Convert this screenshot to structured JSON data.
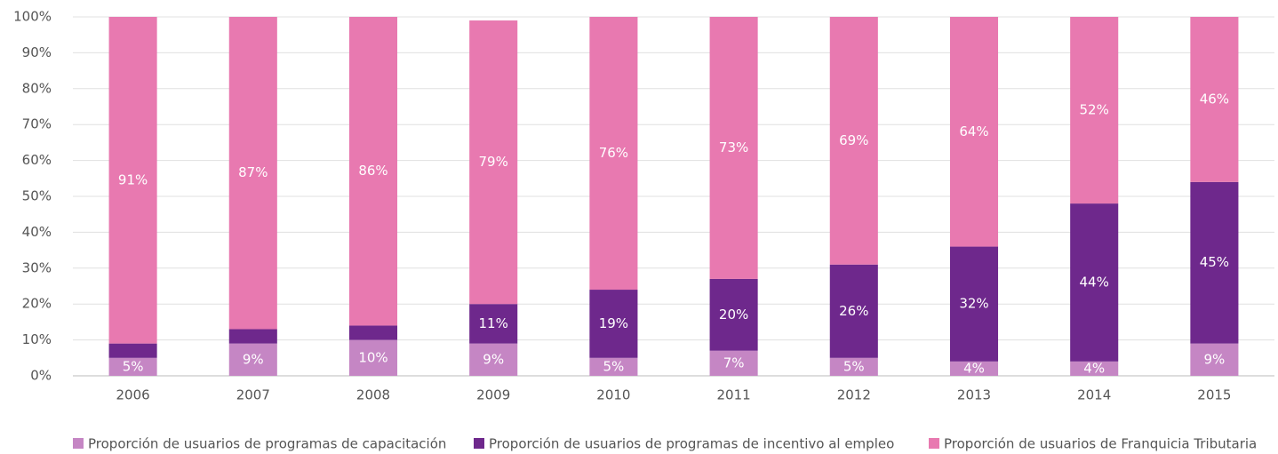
{
  "chart_data": {
    "type": "stacked_bar",
    "categories": [
      "2006",
      "2007",
      "2008",
      "2009",
      "2010",
      "2011",
      "2012",
      "2013",
      "2014",
      "2015"
    ],
    "series": [
      {
        "name": "Proporción de usuarios de programas de capacitación",
        "color": "#c586c4",
        "values": [
          5,
          9,
          10,
          9,
          5,
          7,
          5,
          4,
          4,
          9
        ],
        "value_labels": [
          "5%",
          "9%",
          "10%",
          "9%",
          "5%",
          "7%",
          "5%",
          "4%",
          "4%",
          "9%"
        ]
      },
      {
        "name": "Proporción de usuarios de programas de incentivo al empleo",
        "color": "#6e288c",
        "values": [
          4,
          4,
          4,
          11,
          19,
          20,
          26,
          32,
          44,
          45
        ],
        "value_labels": [
          null,
          null,
          null,
          "11%",
          "19%",
          "20%",
          "26%",
          "32%",
          "44%",
          "45%"
        ]
      },
      {
        "name": "Proporción de usuarios de Franquicia Tributaria",
        "color": "#e879b0",
        "values": [
          91,
          87,
          86,
          79,
          76,
          73,
          69,
          64,
          52,
          46
        ],
        "value_labels": [
          "91%",
          "87%",
          "86%",
          "79%",
          "76%",
          "73%",
          "69%",
          "64%",
          "52%",
          "46%"
        ]
      }
    ],
    "ylim": [
      0,
      100
    ],
    "yticks": [
      {
        "value": 0,
        "label": "0%"
      },
      {
        "value": 10,
        "label": "10%"
      },
      {
        "value": 20,
        "label": "20%"
      },
      {
        "value": 30,
        "label": "30%"
      },
      {
        "value": 40,
        "label": "40%"
      },
      {
        "value": 50,
        "label": "50%"
      },
      {
        "value": 60,
        "label": "60%"
      },
      {
        "value": 70,
        "label": "70%"
      },
      {
        "value": 80,
        "label": "80%"
      },
      {
        "value": 90,
        "label": "90%"
      },
      {
        "value": 100,
        "label": "100%"
      }
    ],
    "grid": true,
    "legend": "bottom"
  }
}
